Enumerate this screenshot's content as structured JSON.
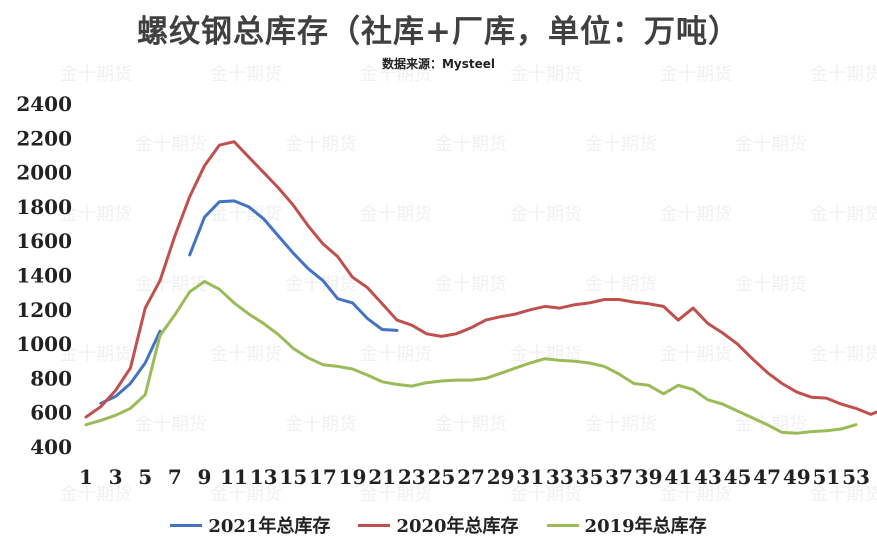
{
  "title": "螺纹钢总库存（社库+厂库，单位：万吨）",
  "subtitle": "数据来源：Mysteel",
  "watermark": "金十期货",
  "chart_data": {
    "type": "line",
    "title": "螺纹钢总库存（社库+厂库，单位：万吨）",
    "xlabel": "",
    "ylabel": "",
    "xlim": [
      1,
      53
    ],
    "ylim": [
      400,
      2400
    ],
    "y_ticks": [
      400,
      600,
      800,
      1000,
      1200,
      1400,
      1600,
      1800,
      2000,
      2200,
      2400
    ],
    "x_ticks": [
      1,
      3,
      5,
      7,
      9,
      11,
      13,
      15,
      17,
      19,
      21,
      23,
      25,
      27,
      29,
      31,
      33,
      35,
      37,
      39,
      41,
      43,
      45,
      47,
      49,
      51,
      53
    ],
    "grid": false,
    "legend_position": "bottom",
    "series": [
      {
        "name": "2021年总库存",
        "color": "#4472c4",
        "segments": [
          [
            [
              2,
              655
            ],
            [
              3,
              695
            ],
            [
              4,
              770
            ],
            [
              5,
              890
            ],
            [
              6,
              1075
            ]
          ],
          [
            [
              8,
              1520
            ],
            [
              9,
              1740
            ],
            [
              10,
              1830
            ],
            [
              11,
              1835
            ],
            [
              12,
              1800
            ],
            [
              13,
              1730
            ],
            [
              14,
              1630
            ],
            [
              15,
              1530
            ],
            [
              16,
              1440
            ],
            [
              17,
              1370
            ],
            [
              18,
              1265
            ],
            [
              19,
              1240
            ],
            [
              20,
              1150
            ],
            [
              21,
              1085
            ],
            [
              22,
              1080
            ]
          ]
        ]
      },
      {
        "name": "2020年总库存",
        "color": "#c0504d",
        "segments": [
          [
            [
              1,
              575
            ],
            [
              2,
              635
            ],
            [
              3,
              730
            ],
            [
              4,
              860
            ],
            [
              5,
              1210
            ],
            [
              6,
              1370
            ],
            [
              7,
              1630
            ],
            [
              8,
              1860
            ],
            [
              9,
              2040
            ],
            [
              10,
              2160
            ],
            [
              11,
              2180
            ],
            [
              12,
              2090
            ],
            [
              13,
              2000
            ],
            [
              14,
              1910
            ],
            [
              15,
              1810
            ],
            [
              16,
              1690
            ],
            [
              17,
              1585
            ],
            [
              18,
              1510
            ],
            [
              19,
              1390
            ],
            [
              20,
              1330
            ],
            [
              21,
              1235
            ],
            [
              22,
              1140
            ],
            [
              23,
              1110
            ],
            [
              24,
              1060
            ],
            [
              25,
              1045
            ],
            [
              26,
              1060
            ],
            [
              27,
              1095
            ],
            [
              28,
              1140
            ],
            [
              29,
              1160
            ],
            [
              30,
              1175
            ],
            [
              31,
              1200
            ],
            [
              32,
              1220
            ],
            [
              33,
              1210
            ],
            [
              34,
              1230
            ],
            [
              35,
              1240
            ],
            [
              36,
              1260
            ],
            [
              37,
              1260
            ],
            [
              38,
              1245
            ],
            [
              39,
              1235
            ],
            [
              40,
              1220
            ],
            [
              41,
              1140
            ],
            [
              42,
              1210
            ],
            [
              43,
              1120
            ],
            [
              44,
              1065
            ],
            [
              45,
              1000
            ],
            [
              46,
              915
            ],
            [
              47,
              835
            ],
            [
              48,
              770
            ],
            [
              49,
              720
            ],
            [
              50,
              690
            ],
            [
              51,
              685
            ],
            [
              52,
              650
            ],
            [
              53,
              625
            ],
            [
              54,
              590
            ],
            [
              55,
              625
            ]
          ]
        ]
      },
      {
        "name": "2019年总库存",
        "color": "#9bbb59",
        "segments": [
          [
            [
              1,
              530
            ],
            [
              2,
              555
            ],
            [
              3,
              585
            ],
            [
              4,
              625
            ],
            [
              5,
              705
            ],
            [
              6,
              1050
            ],
            [
              7,
              1170
            ],
            [
              8,
              1305
            ],
            [
              9,
              1365
            ],
            [
              10,
              1320
            ],
            [
              11,
              1240
            ],
            [
              12,
              1175
            ],
            [
              13,
              1120
            ],
            [
              14,
              1055
            ],
            [
              15,
              975
            ],
            [
              16,
              920
            ],
            [
              17,
              880
            ],
            [
              18,
              870
            ],
            [
              19,
              855
            ],
            [
              20,
              820
            ],
            [
              21,
              780
            ],
            [
              22,
              765
            ],
            [
              23,
              755
            ],
            [
              24,
              775
            ],
            [
              25,
              785
            ],
            [
              26,
              790
            ],
            [
              27,
              790
            ],
            [
              28,
              800
            ],
            [
              29,
              830
            ],
            [
              30,
              860
            ],
            [
              31,
              890
            ],
            [
              32,
              915
            ],
            [
              33,
              905
            ],
            [
              34,
              900
            ],
            [
              35,
              890
            ],
            [
              36,
              870
            ],
            [
              37,
              825
            ],
            [
              38,
              770
            ],
            [
              39,
              760
            ],
            [
              40,
              710
            ],
            [
              41,
              760
            ],
            [
              42,
              735
            ],
            [
              43,
              675
            ],
            [
              44,
              650
            ],
            [
              45,
              610
            ],
            [
              46,
              570
            ],
            [
              47,
              530
            ],
            [
              48,
              485
            ],
            [
              49,
              480
            ],
            [
              50,
              490
            ],
            [
              51,
              495
            ],
            [
              52,
              505
            ],
            [
              53,
              530
            ]
          ]
        ]
      }
    ]
  }
}
